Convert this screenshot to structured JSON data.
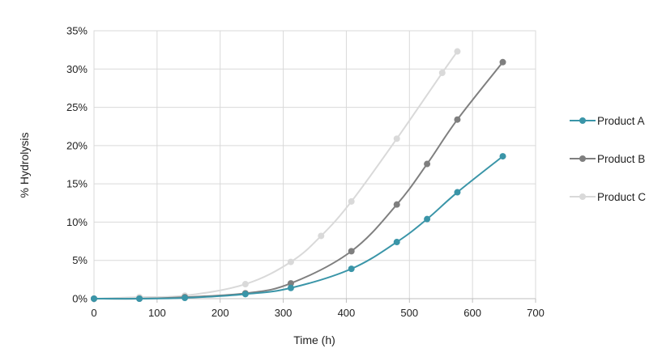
{
  "chart_data": {
    "type": "line",
    "title": "",
    "xlabel": "Time (h)",
    "ylabel": "% Hydrolysis",
    "xlim": [
      0,
      700
    ],
    "ylim": [
      0,
      35
    ],
    "xticks": [
      0,
      100,
      200,
      300,
      400,
      500,
      600,
      700
    ],
    "yticks": [
      0,
      5,
      10,
      15,
      20,
      25,
      30,
      35
    ],
    "xtick_labels": [
      "0",
      "100",
      "200",
      "300",
      "400",
      "500",
      "600",
      "700"
    ],
    "ytick_labels": [
      "0%",
      "5%",
      "10%",
      "15%",
      "20%",
      "25%",
      "30%",
      "35%"
    ],
    "grid": true,
    "legend_position": "right",
    "series": [
      {
        "name": "Product A",
        "color": "#3a95a8",
        "x": [
          0,
          72,
          144,
          240,
          312,
          408,
          480,
          528,
          576,
          648
        ],
        "y": [
          0.0,
          0.0,
          0.1,
          0.6,
          1.4,
          3.9,
          7.4,
          10.4,
          13.9,
          18.6
        ]
      },
      {
        "name": "Product B",
        "color": "#7f7f7f",
        "x": [
          0,
          72,
          144,
          240,
          312,
          408,
          480,
          528,
          576,
          648
        ],
        "y": [
          0.0,
          0.0,
          0.2,
          0.7,
          2.0,
          6.2,
          12.3,
          17.6,
          23.4,
          30.9
        ]
      },
      {
        "name": "Product C",
        "color": "#d9d9d9",
        "x": [
          0,
          72,
          144,
          240,
          312,
          360,
          408,
          480,
          552,
          576
        ],
        "y": [
          0.0,
          0.2,
          0.4,
          1.9,
          4.8,
          8.2,
          12.7,
          20.9,
          29.5,
          32.3
        ]
      }
    ]
  }
}
